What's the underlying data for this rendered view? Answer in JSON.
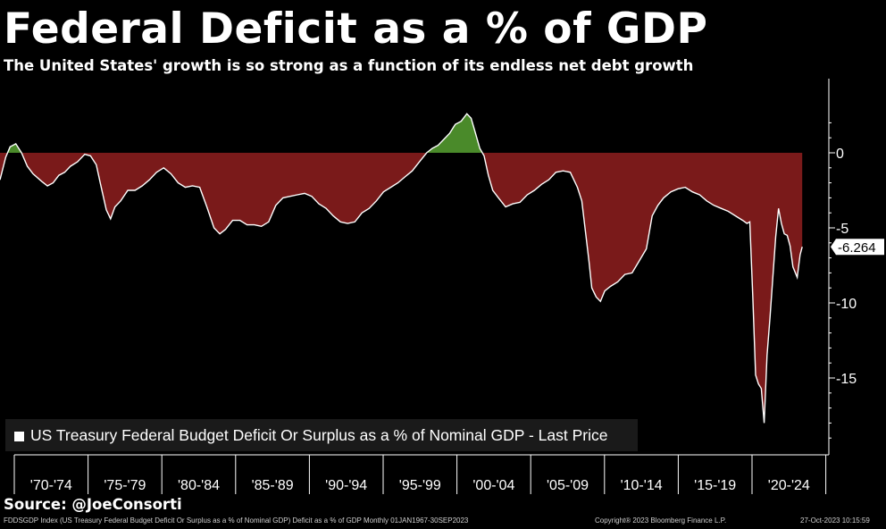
{
  "header": {
    "title": "Federal Deficit as a % of GDP",
    "subtitle": "The United States' growth is so strong as a function of its endless net debt growth"
  },
  "source": "Source: @JoeConsorti",
  "footer": {
    "left": "FDDSGDP Index (US Treasury Federal Budget Deficit Or Surplus as a % of Nominal GDP) Deficit as a % of GDP  Monthly 01JAN1967-30SEP2023",
    "center": "Copyright® 2023 Bloomberg Finance L.P.",
    "right": "27-Oct-2023 10:15:59"
  },
  "colors": {
    "deficit": "#7a1a1a",
    "surplus": "#4a8a2a",
    "line": "#ffffff",
    "axis": "#ffffff"
  },
  "chart_data": {
    "type": "area",
    "title": "Federal Deficit as a % of GDP",
    "legend": "US Treasury Federal Budget Deficit Or Surplus as a % of Nominal GDP - Last Price",
    "legend_position": "bottom-left",
    "ylim": [
      -20,
      3
    ],
    "yticks": [
      0,
      -5,
      -10,
      -15
    ],
    "ytick_labels": [
      "0",
      "-5",
      "-10",
      "-15"
    ],
    "xlim": [
      1967.9,
      2025.6
    ],
    "x_tick_labels": [
      "'70-'74",
      "'75-'79",
      "'80-'84",
      "'85-'89",
      "'90-'94",
      "'95-'99",
      "'00-'04",
      "'05-'09",
      "'10-'14",
      "'15-'19",
      "'20-'24"
    ],
    "last_value": -6.264,
    "last_value_label": "-6.264",
    "series": [
      {
        "name": "US Treasury Federal Budget Deficit Or Surplus as a % of Nominal GDP",
        "x": [
          1967.9,
          1968.3,
          1968.6,
          1969.0,
          1969.4,
          1969.8,
          1970.2,
          1970.8,
          1971.2,
          1971.6,
          1972.0,
          1972.4,
          1972.8,
          1973.3,
          1973.8,
          1974.2,
          1974.6,
          1974.9,
          1975.3,
          1975.6,
          1975.9,
          1976.3,
          1976.8,
          1977.3,
          1977.8,
          1978.3,
          1978.8,
          1979.3,
          1979.8,
          1980.3,
          1980.8,
          1981.3,
          1981.8,
          1982.3,
          1982.8,
          1983.2,
          1983.6,
          1984.1,
          1984.6,
          1985.1,
          1985.6,
          1986.1,
          1986.6,
          1987.1,
          1987.6,
          1988.1,
          1988.6,
          1989.1,
          1989.6,
          1990.1,
          1990.6,
          1991.1,
          1991.6,
          1992.1,
          1992.6,
          1993.1,
          1993.6,
          1994.1,
          1994.6,
          1995.1,
          1995.6,
          1996.1,
          1996.6,
          1997.1,
          1997.6,
          1998.0,
          1998.4,
          1998.8,
          1999.2,
          1999.6,
          2000.0,
          2000.4,
          2000.7,
          2001.0,
          2001.3,
          2001.6,
          2001.9,
          2002.2,
          2002.6,
          2003.1,
          2003.6,
          2004.1,
          2004.6,
          2005.1,
          2005.6,
          2006.1,
          2006.6,
          2007.1,
          2007.6,
          2008.1,
          2008.4,
          2008.7,
          2008.9,
          2009.1,
          2009.4,
          2009.7,
          2010.0,
          2010.4,
          2010.9,
          2011.4,
          2011.9,
          2012.4,
          2012.9,
          2013.3,
          2013.7,
          2014.1,
          2014.6,
          2015.1,
          2015.6,
          2016.1,
          2016.6,
          2017.1,
          2017.6,
          2018.1,
          2018.6,
          2019.1,
          2019.6,
          2019.9,
          2020.1,
          2020.3,
          2020.5,
          2020.7,
          2020.9,
          2021.1,
          2021.3,
          2021.5,
          2021.7,
          2021.9,
          2022.1,
          2022.3,
          2022.5,
          2022.7,
          2022.9,
          2023.1,
          2023.4,
          2023.6,
          2023.75
        ],
        "values": [
          -1.8,
          -0.3,
          0.4,
          0.6,
          0.0,
          -0.9,
          -1.4,
          -1.9,
          -2.2,
          -2.0,
          -1.5,
          -1.3,
          -0.9,
          -0.6,
          -0.1,
          -0.2,
          -0.8,
          -2.1,
          -3.8,
          -4.4,
          -3.6,
          -3.2,
          -2.5,
          -2.5,
          -2.2,
          -1.8,
          -1.3,
          -1.0,
          -1.4,
          -2.0,
          -2.3,
          -2.2,
          -2.3,
          -3.6,
          -5.0,
          -5.4,
          -5.1,
          -4.5,
          -4.5,
          -4.8,
          -4.8,
          -4.9,
          -4.6,
          -3.5,
          -3.0,
          -2.9,
          -2.8,
          -2.7,
          -2.9,
          -3.4,
          -3.7,
          -4.2,
          -4.6,
          -4.7,
          -4.6,
          -4.0,
          -3.7,
          -3.2,
          -2.6,
          -2.3,
          -2.0,
          -1.6,
          -1.2,
          -0.6,
          0.0,
          0.3,
          0.5,
          0.9,
          1.3,
          1.9,
          2.1,
          2.6,
          2.3,
          1.3,
          0.3,
          -0.2,
          -1.5,
          -2.5,
          -3.0,
          -3.6,
          -3.4,
          -3.3,
          -2.8,
          -2.5,
          -2.1,
          -1.8,
          -1.3,
          -1.2,
          -1.3,
          -2.3,
          -3.2,
          -5.6,
          -7.2,
          -9.0,
          -9.6,
          -9.9,
          -9.2,
          -8.9,
          -8.6,
          -8.1,
          -8.0,
          -7.2,
          -6.4,
          -4.2,
          -3.5,
          -3.0,
          -2.6,
          -2.4,
          -2.3,
          -2.6,
          -2.8,
          -3.2,
          -3.5,
          -3.7,
          -3.9,
          -4.2,
          -4.5,
          -4.7,
          -4.6,
          -9.5,
          -14.8,
          -15.4,
          -15.7,
          -18.0,
          -13.5,
          -11.0,
          -8.3,
          -5.6,
          -3.7,
          -4.7,
          -5.4,
          -5.5,
          -6.2,
          -7.6,
          -8.3,
          -6.8,
          -6.264
        ]
      }
    ]
  }
}
